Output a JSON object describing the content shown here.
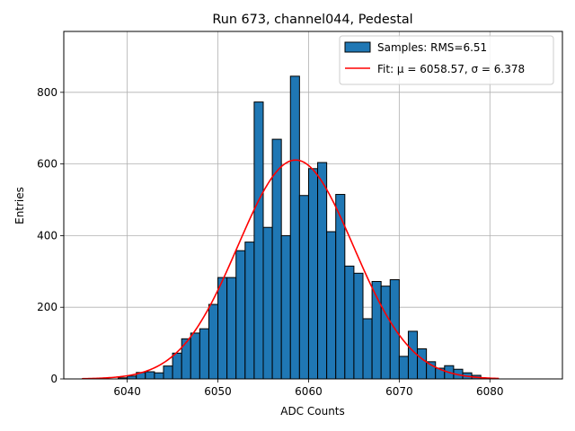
{
  "chart_data": {
    "type": "bar",
    "title": "Run 673, channel044, Pedestal",
    "xlabel": "ADC Counts",
    "ylabel": "Entries",
    "xlim": [
      6033,
      6088
    ],
    "ylim": [
      0,
      970
    ],
    "xticks": [
      6040,
      6050,
      6060,
      6070,
      6080
    ],
    "yticks": [
      0,
      200,
      400,
      600,
      800
    ],
    "grid": true,
    "legend_position": "upper-right",
    "colors": {
      "bar": "#1f77b4",
      "edge": "#000000",
      "fit": "#ff0000",
      "grid": "#b0b0b0"
    },
    "histogram": {
      "name": "Samples: RMS=6.51",
      "bin_width": 1,
      "bin_starts": [
        6039,
        6040,
        6041,
        6042,
        6043,
        6044,
        6045,
        6046,
        6047,
        6048,
        6049,
        6050,
        6051,
        6052,
        6053,
        6054,
        6055,
        6056,
        6057,
        6058,
        6059,
        6060,
        6061,
        6062,
        6063,
        6064,
        6065,
        6066,
        6067,
        6068,
        6069,
        6070,
        6071,
        6072,
        6073,
        6074,
        6075,
        6076,
        6077,
        6078
      ],
      "counts": [
        3,
        8,
        18,
        20,
        17,
        36,
        72,
        112,
        128,
        140,
        208,
        283,
        283,
        358,
        382,
        773,
        423,
        669,
        400,
        845,
        512,
        587,
        604,
        411,
        515,
        315,
        295,
        168,
        272,
        259,
        277,
        63,
        133,
        84,
        48,
        30,
        37,
        27,
        17,
        10
      ]
    },
    "fit": {
      "name": "Fit: μ = 6058.57, σ = 6.378",
      "mu": 6058.57,
      "sigma": 6.378,
      "amplitude": 611,
      "x_range": [
        6035,
        6081
      ]
    }
  }
}
